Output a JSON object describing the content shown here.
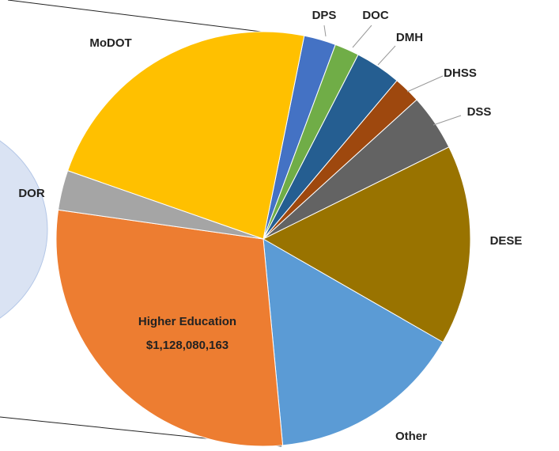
{
  "chart_data": {
    "type": "pie",
    "categories": [
      "DPS",
      "DOC",
      "DMH",
      "DHSS",
      "DSS",
      "DESE",
      "Other",
      "Higher Education",
      "DOR",
      "MoDOT"
    ],
    "values": [
      98000000,
      75000000,
      141000000,
      83000000,
      173000000,
      613000000,
      597000000,
      1128080163,
      122000000,
      896000000
    ],
    "value_labels": [
      null,
      null,
      null,
      null,
      null,
      null,
      null,
      "$1,128,080,163",
      null,
      null
    ],
    "colors": [
      "#4472c4",
      "#70ad47",
      "#255e91",
      "#9e480e",
      "#636363",
      "#997300",
      "#5b9bd5",
      "#ed7d31",
      "#a5a5a5",
      "#ffc000"
    ]
  }
}
